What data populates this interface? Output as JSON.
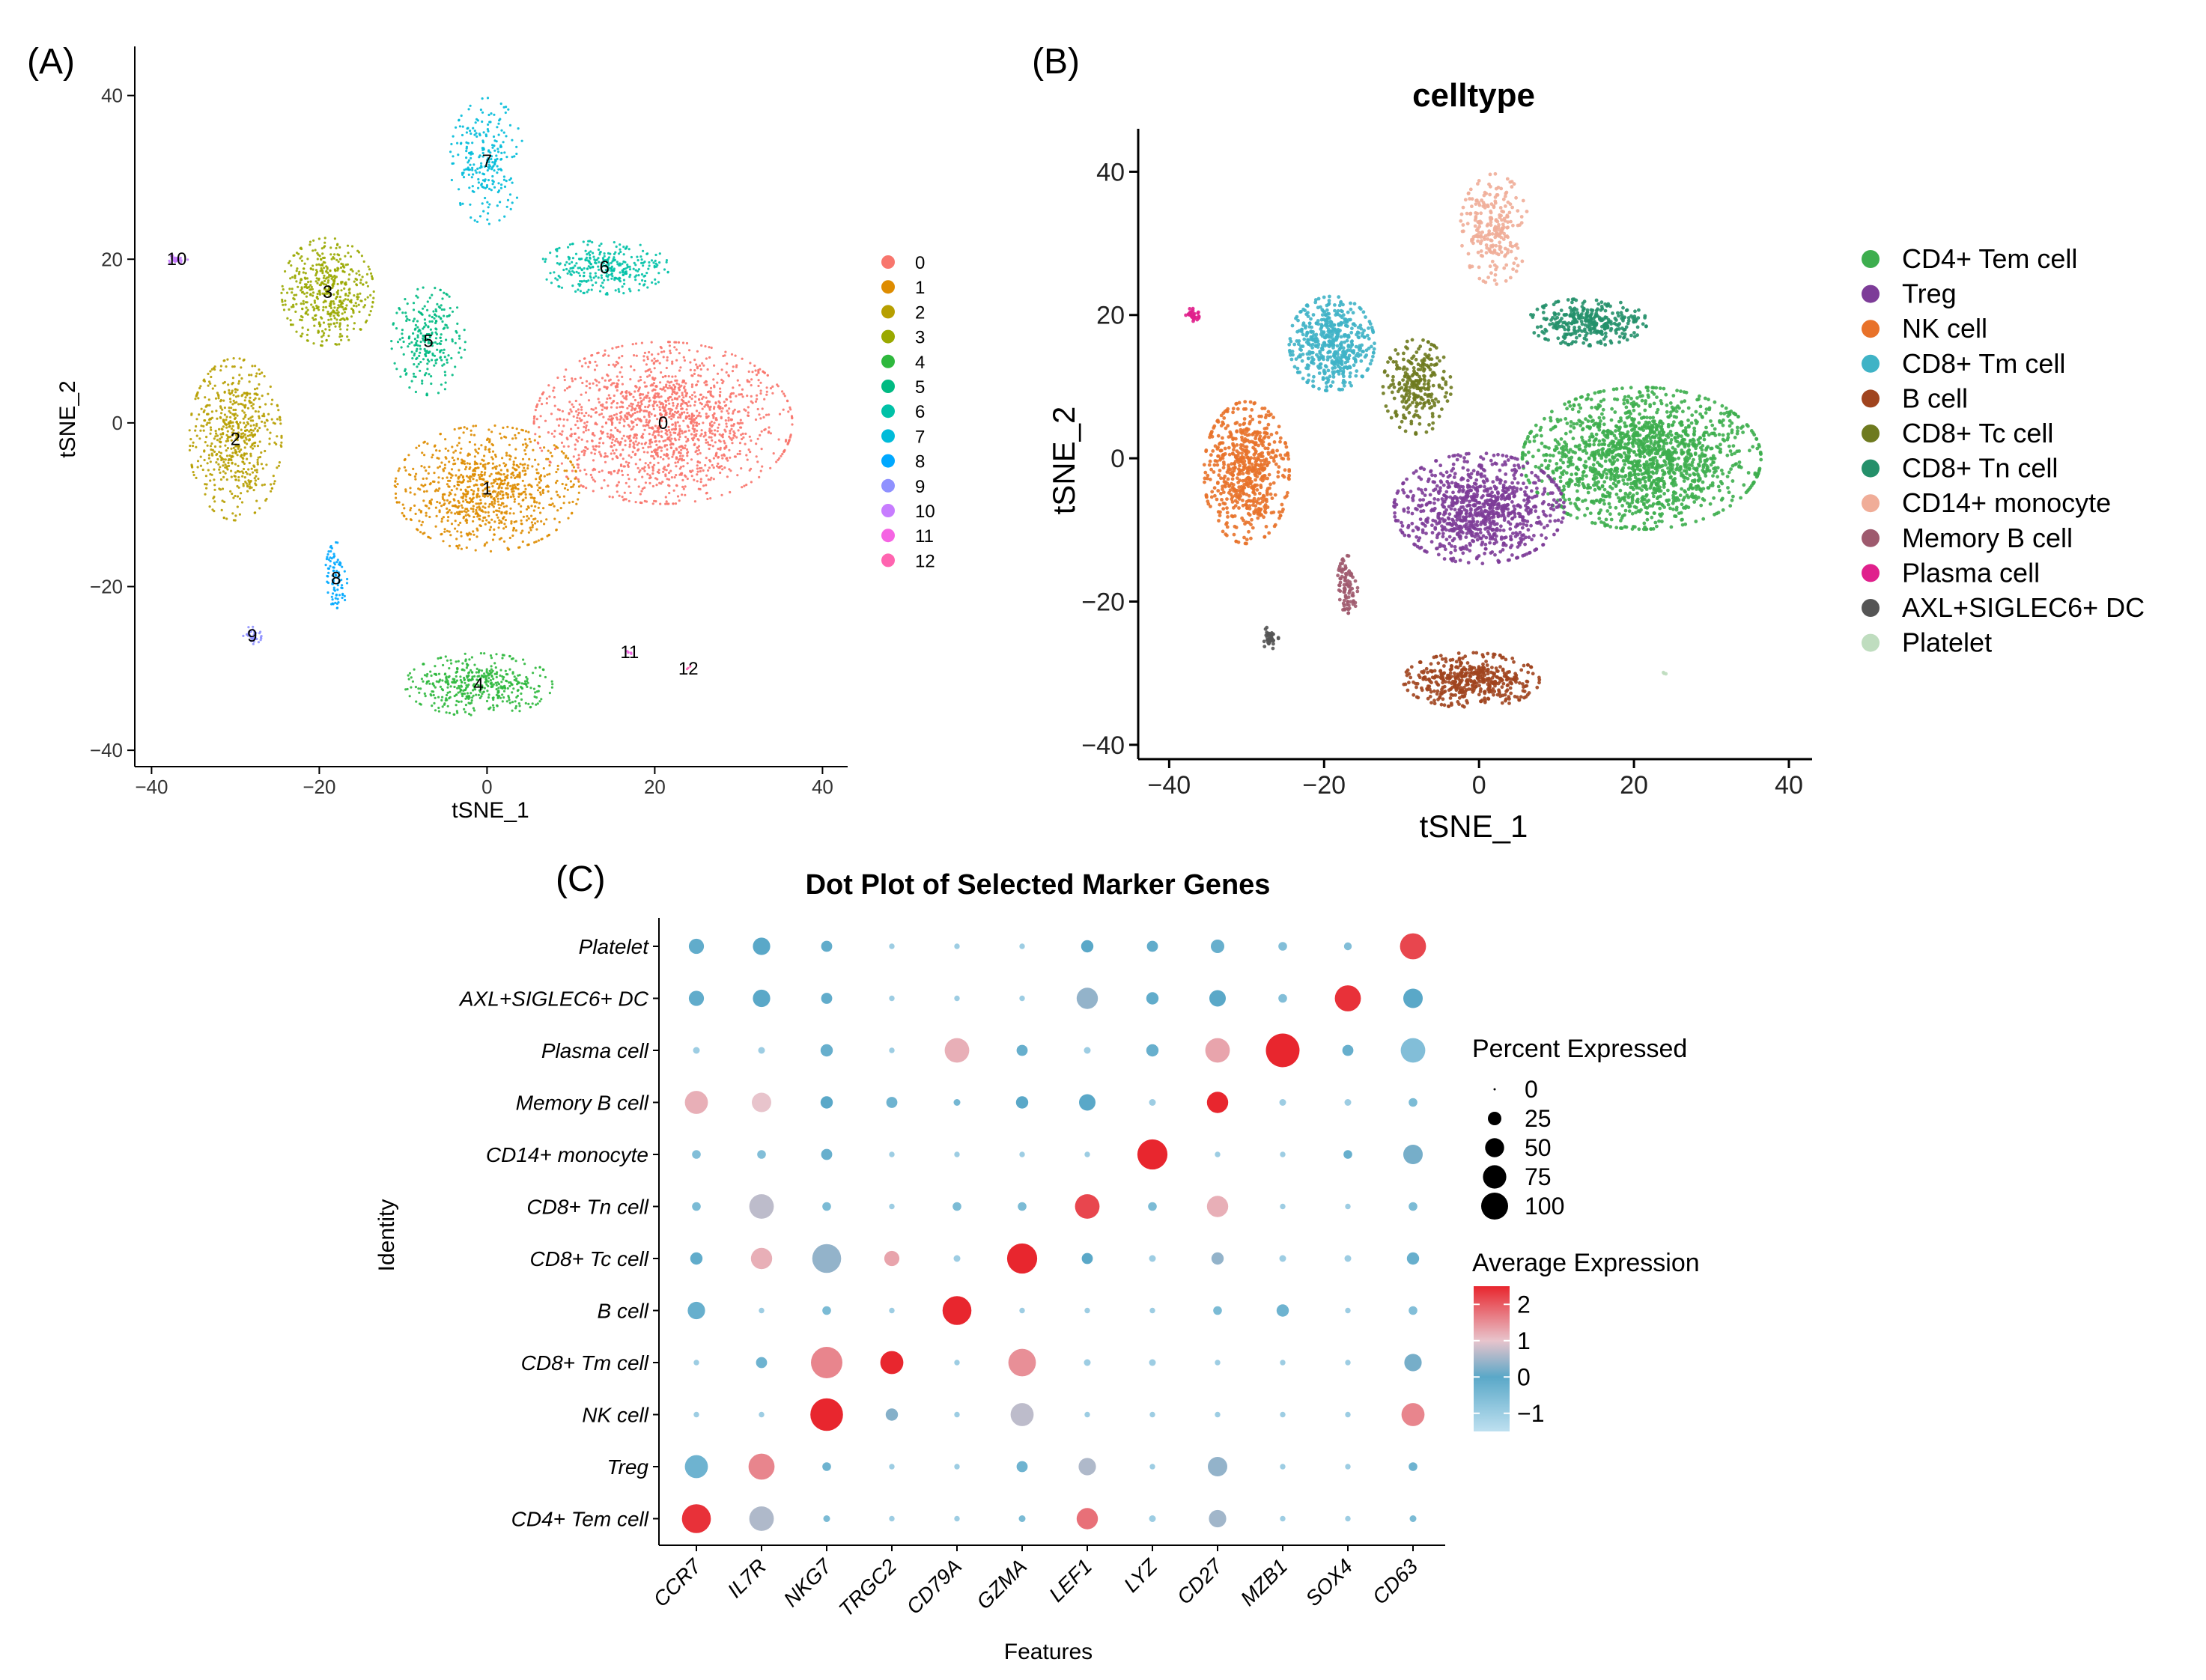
{
  "panels": {
    "a_label": "(A)",
    "b_label": "(B)",
    "c_label": "(C)"
  },
  "chart_data": [
    {
      "type": "scatter",
      "panel": "A",
      "title": "",
      "xlabel": "tSNE_1",
      "ylabel": "tSNE_2",
      "xlim": [
        -42,
        43
      ],
      "ylim": [
        -42,
        46
      ],
      "xticks": [
        "−40",
        "−20",
        "0",
        "20",
        "40"
      ],
      "xtick_values": [
        -40,
        -20,
        0,
        20,
        40
      ],
      "yticks": [
        "−40",
        "−20",
        "0",
        "20",
        "40"
      ],
      "ytick_values": [
        -40,
        -20,
        0,
        20,
        40
      ],
      "legend_position": "right",
      "legend_labels": [
        "0",
        "1",
        "2",
        "3",
        "4",
        "5",
        "6",
        "7",
        "8",
        "9",
        "10",
        "11",
        "12"
      ],
      "clusters": [
        {
          "label": "0",
          "color": "#F8766D",
          "center": [
            21,
            0
          ],
          "spread": [
            14,
            9
          ],
          "count": 1600
        },
        {
          "label": "1",
          "color": "#DE8C00",
          "center": [
            0,
            -8
          ],
          "spread": [
            10,
            7
          ],
          "count": 900
        },
        {
          "label": "2",
          "color": "#B79F00",
          "center": [
            -30,
            -2
          ],
          "spread": [
            5,
            9
          ],
          "count": 600
        },
        {
          "label": "3",
          "color": "#9AA900",
          "center": [
            -19,
            16
          ],
          "spread": [
            5,
            6
          ],
          "count": 500
        },
        {
          "label": "4",
          "color": "#2EB83D",
          "center": [
            -1,
            -32
          ],
          "spread": [
            8,
            3.5
          ],
          "count": 450
        },
        {
          "label": "5",
          "color": "#00BA82",
          "center": [
            -7,
            10
          ],
          "spread": [
            4,
            6
          ],
          "count": 260
        },
        {
          "label": "6",
          "color": "#00C1A7",
          "center": [
            14,
            19
          ],
          "spread": [
            7,
            3
          ],
          "count": 320
        },
        {
          "label": "7",
          "color": "#00BBD9",
          "center": [
            0,
            32
          ],
          "spread": [
            4,
            7
          ],
          "count": 240
        },
        {
          "label": "8",
          "color": "#00A8FF",
          "center": [
            -18,
            -19
          ],
          "spread": [
            1.2,
            4
          ],
          "count": 90
        },
        {
          "label": "9",
          "color": "#8F91FF",
          "center": [
            -28,
            -26
          ],
          "spread": [
            1,
            1.2
          ],
          "count": 40
        },
        {
          "label": "10",
          "color": "#C77CFF",
          "center": [
            -37,
            20
          ],
          "spread": [
            1.2,
            0.5
          ],
          "count": 30
        },
        {
          "label": "11",
          "color": "#F564E3",
          "center": [
            17,
            -28
          ],
          "spread": [
            0.4,
            0.3
          ],
          "count": 6
        },
        {
          "label": "12",
          "color": "#FF64B0",
          "center": [
            24,
            -30
          ],
          "spread": [
            0.3,
            0.3
          ],
          "count": 3
        }
      ]
    },
    {
      "type": "scatter",
      "panel": "B",
      "title": "celltype",
      "xlabel": "tSNE_1",
      "ylabel": "tSNE_2",
      "xlim": [
        -44,
        43
      ],
      "ylim": [
        -42,
        46
      ],
      "xticks": [
        "−40",
        "−20",
        "0",
        "20",
        "40"
      ],
      "xtick_values": [
        -40,
        -20,
        0,
        20,
        40
      ],
      "yticks": [
        "−40",
        "−20",
        "0",
        "20",
        "40"
      ],
      "ytick_values": [
        -40,
        -20,
        0,
        20,
        40
      ],
      "legend_position": "right",
      "clusters": [
        {
          "label": "CD4+ Tem cell",
          "color": "#3DAE4E",
          "center": [
            21,
            0
          ],
          "spread": [
            14,
            9
          ],
          "count": 1600
        },
        {
          "label": "Treg",
          "color": "#7D3C98",
          "center": [
            0,
            -7
          ],
          "spread": [
            10,
            7
          ],
          "count": 900
        },
        {
          "label": "NK cell",
          "color": "#E8722A",
          "center": [
            -30,
            -2
          ],
          "spread": [
            5,
            9
          ],
          "count": 600
        },
        {
          "label": "CD8+ Tm cell",
          "color": "#3FB3C6",
          "center": [
            -19,
            16
          ],
          "spread": [
            5,
            6
          ],
          "count": 500
        },
        {
          "label": "B cell",
          "color": "#A0441E",
          "center": [
            -1,
            -31
          ],
          "spread": [
            8,
            3.5
          ],
          "count": 450
        },
        {
          "label": "CD8+ Tc cell",
          "color": "#6E7A1F",
          "center": [
            -8,
            10
          ],
          "spread": [
            4,
            6
          ],
          "count": 260
        },
        {
          "label": "CD8+ Tn cell",
          "color": "#24906A",
          "center": [
            14,
            19
          ],
          "spread": [
            7,
            3
          ],
          "count": 320
        },
        {
          "label": "CD14+ monocyte",
          "color": "#F0AD98",
          "center": [
            2,
            32
          ],
          "spread": [
            4,
            7
          ],
          "count": 240
        },
        {
          "label": "Memory B cell",
          "color": "#9E5A6E",
          "center": [
            -17,
            -18
          ],
          "spread": [
            1.2,
            4
          ],
          "count": 90
        },
        {
          "label": "Plasma cell",
          "color": "#E0208C",
          "center": [
            -37,
            20
          ],
          "spread": [
            0.8,
            1
          ],
          "count": 30
        },
        {
          "label": "AXL+SIGLEC6+ DC",
          "color": "#555555",
          "center": [
            -27,
            -25
          ],
          "spread": [
            1,
            1.5
          ],
          "count": 40
        },
        {
          "label": "Platelet",
          "color": "#BFDDBF",
          "center": [
            24,
            -30
          ],
          "spread": [
            0.3,
            0.3
          ],
          "count": 3
        }
      ]
    },
    {
      "type": "dot",
      "panel": "C",
      "title": "Dot Plot of Selected Marker Genes",
      "xlabel": "Features",
      "ylabel": "Identity",
      "features": [
        "CCR7",
        "IL7R",
        "NKG7",
        "TRGC2",
        "CD79A",
        "GZMA",
        "LEF1",
        "LYZ",
        "CD27",
        "MZB1",
        "SOX4",
        "CD63"
      ],
      "identities": [
        "Platelet",
        "AXL+SIGLEC6+ DC",
        "Plasma cell",
        "Memory B cell",
        "CD14+ monocyte",
        "CD8+ Tn cell",
        "CD8+ Tc cell",
        "B cell",
        "CD8+ Tm cell",
        "NK cell",
        "Treg",
        "CD4+ Tem cell"
      ],
      "percent_expressed": [
        [
          15,
          20,
          8,
          2,
          2,
          2,
          10,
          8,
          12,
          5,
          4,
          45
        ],
        [
          15,
          20,
          8,
          2,
          2,
          2,
          30,
          10,
          18,
          5,
          45,
          25
        ],
        [
          3,
          3,
          10,
          2,
          40,
          8,
          3,
          10,
          40,
          75,
          8,
          40
        ],
        [
          35,
          25,
          10,
          8,
          3,
          10,
          18,
          3,
          30,
          3,
          3,
          5
        ],
        [
          5,
          5,
          8,
          2,
          2,
          2,
          2,
          60,
          2,
          2,
          5,
          25
        ],
        [
          5,
          40,
          5,
          2,
          5,
          5,
          40,
          5,
          30,
          2,
          2,
          5
        ],
        [
          10,
          30,
          55,
          15,
          3,
          60,
          8,
          3,
          10,
          3,
          3,
          10
        ],
        [
          20,
          2,
          5,
          2,
          55,
          2,
          2,
          2,
          5,
          10,
          2,
          5
        ],
        [
          2,
          8,
          65,
          35,
          2,
          50,
          3,
          3,
          2,
          2,
          2,
          20
        ],
        [
          2,
          2,
          70,
          10,
          2,
          35,
          2,
          2,
          2,
          2,
          2,
          35
        ],
        [
          35,
          45,
          5,
          2,
          2,
          8,
          20,
          2,
          25,
          2,
          2,
          5
        ],
        [
          55,
          40,
          3,
          2,
          2,
          3,
          30,
          3,
          20,
          2,
          2,
          3
        ]
      ],
      "average_expression": [
        [
          -0.1,
          0,
          -0.1,
          -1,
          -1,
          -1,
          0,
          -0.1,
          -0.2,
          -0.6,
          -0.6,
          2.2
        ],
        [
          -0.1,
          0,
          -0.1,
          -1,
          -1,
          -1,
          0.4,
          -0.1,
          0,
          -0.6,
          2.4,
          0
        ],
        [
          -1,
          -1,
          -0.2,
          -1,
          1.2,
          -0.2,
          -1,
          -0.2,
          1.3,
          2.5,
          -0.2,
          -0.6
        ],
        [
          1.2,
          1,
          0,
          -0.3,
          -0.4,
          0,
          0,
          -1,
          2.5,
          -1,
          -1,
          -0.5
        ],
        [
          -0.6,
          -0.6,
          -0.2,
          -1,
          -1,
          -1,
          -1,
          2.6,
          -1,
          -1,
          -0.2,
          0.2
        ],
        [
          -0.5,
          0.7,
          -0.5,
          -1,
          -0.5,
          -0.5,
          2.2,
          -0.5,
          1.2,
          -1,
          -1,
          -0.5
        ],
        [
          -0.1,
          1.2,
          0.4,
          1.3,
          -1,
          2.5,
          0,
          -1,
          0.4,
          -1,
          -1,
          -0.2
        ],
        [
          -0.2,
          -1,
          -0.5,
          -1,
          2.6,
          -1,
          -1,
          -1,
          -0.5,
          -0.3,
          -1,
          -0.6
        ],
        [
          -1,
          -0.3,
          1.6,
          2.6,
          -1,
          1.5,
          -1,
          -1,
          -1,
          -1,
          -1,
          0.2
        ],
        [
          -1,
          -1,
          2.6,
          0.3,
          -1,
          0.7,
          -1,
          -1,
          -1,
          -1,
          -1,
          1.6
        ],
        [
          -0.3,
          1.6,
          -0.3,
          -1,
          -1,
          -0.3,
          0.6,
          -1,
          0.4,
          -1,
          -1,
          -0.3
        ],
        [
          2.4,
          0.6,
          -0.5,
          -1,
          -1,
          -0.5,
          1.8,
          -1,
          0.5,
          -1,
          -1,
          -0.5
        ]
      ],
      "size_legend": {
        "title": "Percent Expressed",
        "values": [
          0,
          25,
          50,
          75,
          100
        ],
        "labels": [
          "0",
          "25",
          "50",
          "75",
          "100"
        ]
      },
      "color_legend": {
        "title": "Average Expression",
        "range": [
          -1.5,
          2.5
        ],
        "labels": [
          "2",
          "1",
          "0",
          "−1"
        ],
        "label_values": [
          2,
          1,
          0,
          -1
        ],
        "low_color": "#BEE0F0",
        "mid_color": "#5AA8C8",
        "high_mid_color": "#E8C4CC",
        "high_color": "#E8262E"
      }
    }
  ]
}
